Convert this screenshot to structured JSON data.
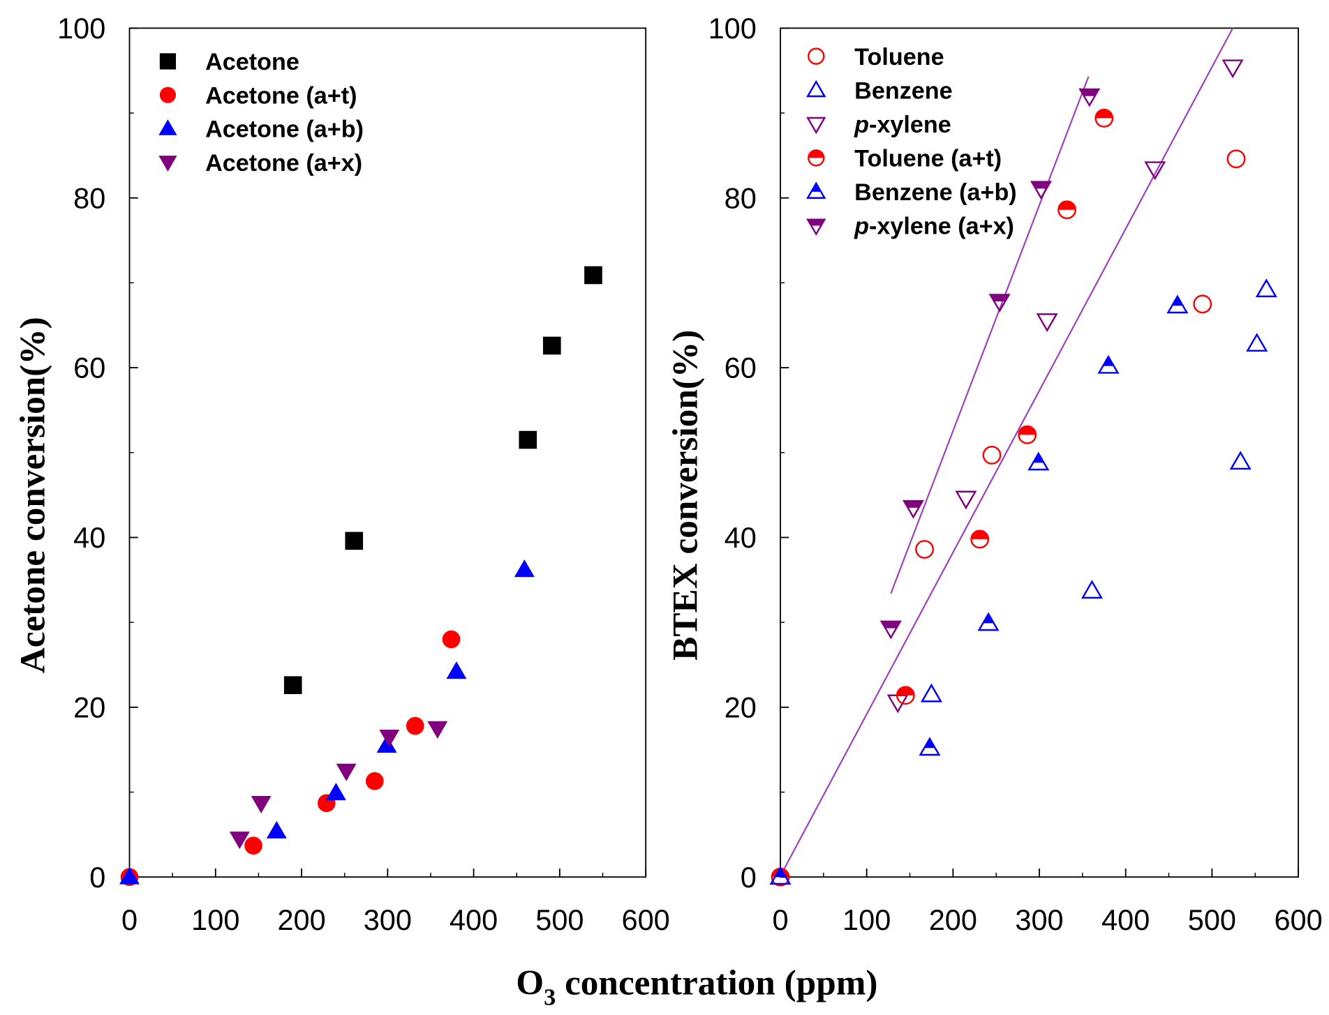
{
  "chart_data": [
    {
      "type": "scatter",
      "ylabel": "Acetone conversion(%)",
      "xlabel": "O3 concentration (ppm)",
      "xlim": [
        0,
        600
      ],
      "ylim": [
        0,
        100
      ],
      "xticks": [
        "0",
        "100",
        "200",
        "300",
        "400",
        "500",
        "600"
      ],
      "yticks": [
        "0",
        "20",
        "40",
        "60",
        "80",
        "100"
      ],
      "legend_position": "top-left",
      "series": [
        {
          "name": "Acetone",
          "marker": "square",
          "fill": "filled",
          "color": "#000000",
          "x": [
            190,
            261,
            463,
            491,
            539
          ],
          "y": [
            22.6,
            39.6,
            51.5,
            62.6,
            70.9
          ]
        },
        {
          "name": "Acetone (a+t)",
          "marker": "circle",
          "fill": "filled",
          "color": "#ff0000",
          "x": [
            0,
            144,
            229,
            285,
            332,
            374
          ],
          "y": [
            0,
            3.7,
            8.7,
            11.3,
            17.8,
            28.0
          ]
        },
        {
          "name": "Acetone (a+b)",
          "marker": "triangle-up",
          "fill": "filled",
          "color": "#0000ff",
          "x": [
            0,
            171,
            240,
            299,
            380,
            459
          ],
          "y": [
            0,
            5.4,
            9.9,
            15.5,
            24.2,
            36.2
          ]
        },
        {
          "name": "Acetone (a+x)",
          "marker": "triangle-down",
          "fill": "filled",
          "color": "#800080",
          "x": [
            128,
            153,
            252,
            302,
            358
          ],
          "y": [
            4.5,
            8.7,
            12.5,
            16.5,
            17.5
          ]
        }
      ]
    },
    {
      "type": "scatter",
      "ylabel": "BTEX conversion(%)",
      "xlabel": "O3 concentration (ppm)",
      "xlim": [
        0,
        600
      ],
      "ylim": [
        0,
        100
      ],
      "xticks": [
        "0",
        "100",
        "200",
        "300",
        "400",
        "500",
        "600"
      ],
      "yticks": [
        "0",
        "20",
        "40",
        "60",
        "80",
        "100"
      ],
      "legend_position": "top-left",
      "series": [
        {
          "name": "Toluene",
          "marker": "circle",
          "fill": "open",
          "color": "#ff0000",
          "x": [
            167,
            245,
            489,
            528
          ],
          "y": [
            38.6,
            49.7,
            67.5,
            84.6
          ]
        },
        {
          "name": "Benzene",
          "marker": "triangle-up",
          "fill": "open",
          "color": "#0000ff",
          "x": [
            175,
            361,
            533,
            552,
            563
          ],
          "y": [
            21.5,
            33.7,
            48.9,
            62.8,
            69.2
          ]
        },
        {
          "name": "p-xylene",
          "marker": "triangle-down",
          "fill": "open",
          "color": "#800080",
          "x": [
            136,
            215,
            309,
            434,
            524
          ],
          "y": [
            20.6,
            44.6,
            65.5,
            83.4,
            95.4
          ]
        },
        {
          "name": "Toluene (a+t)",
          "marker": "circle",
          "fill": "half",
          "color": "#ff0000",
          "x": [
            0,
            145,
            231,
            286,
            332,
            375
          ],
          "y": [
            0,
            21.4,
            39.8,
            52.1,
            78.6,
            89.4
          ]
        },
        {
          "name": "Benzene (a+b)",
          "marker": "triangle-up",
          "fill": "half",
          "color": "#0000ff",
          "x": [
            0,
            173,
            241,
            299,
            380,
            460
          ],
          "y": [
            0,
            15.2,
            29.9,
            48.8,
            60.2,
            67.3
          ]
        },
        {
          "name": "p-xylene (a+x)",
          "marker": "triangle-down",
          "fill": "half",
          "color": "#800080",
          "x": [
            128,
            154,
            254,
            302,
            358
          ],
          "y": [
            29.3,
            43.5,
            67.8,
            81.1,
            92.0
          ]
        }
      ],
      "fit_lines": [
        {
          "color": "#a040c0",
          "x": [
            128,
            357
          ],
          "y": [
            33.4,
            94.3
          ]
        },
        {
          "color": "#a040c0",
          "x": [
            2,
            524
          ],
          "y": [
            0.5,
            100
          ]
        }
      ]
    }
  ],
  "shared_xlabel": {
    "main": "O",
    "sub": "3",
    "rest": " concentration (ppm)"
  }
}
